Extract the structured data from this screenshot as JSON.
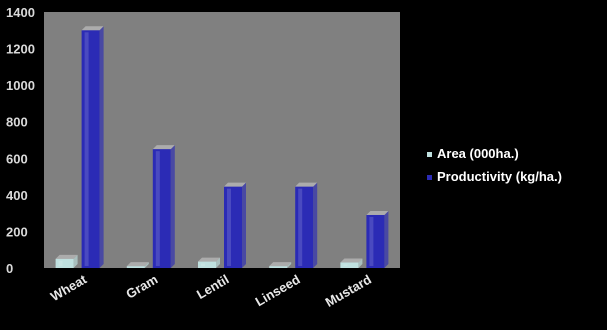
{
  "chart_data": {
    "type": "bar",
    "categories": [
      "Wheat",
      "Gram",
      "Lentil",
      "Linseed",
      "Mustard"
    ],
    "series": [
      {
        "name": "Area (000ha.)",
        "values": [
          50,
          10,
          35,
          10,
          30
        ],
        "color": "#bfe0df"
      },
      {
        "name": "Productivity (kg/ha.)",
        "values": [
          1300,
          650,
          445,
          445,
          290
        ],
        "color": "#2b2bb5"
      }
    ],
    "yticks": [
      0,
      200,
      400,
      600,
      800,
      1000,
      1200,
      1400
    ],
    "ylim": [
      0,
      1400
    ],
    "legend_position": "right",
    "plot_background": "#808080",
    "page_background": "#000000",
    "grid": false
  }
}
